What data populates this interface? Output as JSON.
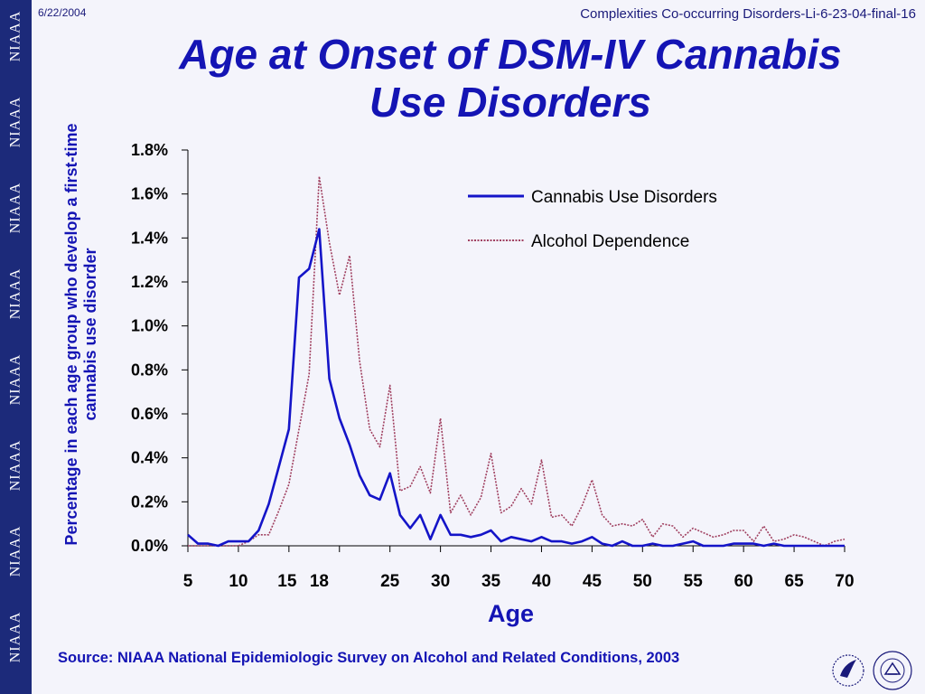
{
  "slide": {
    "date": "6/22/2004",
    "header_note": "Complexities Co-occurring Disorders-Li-6-23-04-final-16",
    "title_line1": "Age at Onset of DSM-IV Cannabis",
    "title_line2": "Use Disorders",
    "source": "Source: NIAAA National Epidemiologic Survey on Alcohol and Related Conditions, 2003",
    "sidebar_label": "NIAAA"
  },
  "chart_data": {
    "type": "line",
    "title": "Age at Onset of DSM-IV Cannabis Use Disorders",
    "xlabel": "Age",
    "ylabel": "Percentage in each age group who develop a first-time cannabis use disorder",
    "xlim": [
      5,
      70
    ],
    "ylim": [
      0,
      1.8
    ],
    "x_ticks": [
      5,
      10,
      15,
      18,
      25,
      30,
      35,
      40,
      45,
      50,
      55,
      60,
      65,
      70
    ],
    "y_ticks": [
      "0.0%",
      "0.2%",
      "0.4%",
      "0.6%",
      "0.8%",
      "1.0%",
      "1.2%",
      "1.4%",
      "1.6%",
      "1.8%"
    ],
    "legend_position": "top-right",
    "grid": false,
    "x": [
      5,
      6,
      7,
      8,
      9,
      10,
      11,
      12,
      13,
      14,
      15,
      16,
      17,
      18,
      19,
      20,
      21,
      22,
      23,
      24,
      25,
      26,
      27,
      28,
      29,
      30,
      31,
      32,
      33,
      34,
      35,
      36,
      37,
      38,
      39,
      40,
      41,
      42,
      43,
      44,
      45,
      46,
      47,
      48,
      49,
      50,
      51,
      52,
      53,
      54,
      55,
      56,
      57,
      58,
      59,
      60,
      61,
      62,
      63,
      64,
      65,
      66,
      67,
      68,
      69,
      70
    ],
    "series": [
      {
        "name": "Cannabis Use Disorders",
        "color": "#1414c8",
        "style": "solid",
        "values": [
          0.05,
          0.01,
          0.01,
          0.0,
          0.02,
          0.02,
          0.02,
          0.07,
          0.19,
          0.36,
          0.53,
          1.22,
          1.26,
          1.44,
          0.76,
          0.58,
          0.46,
          0.32,
          0.23,
          0.21,
          0.33,
          0.14,
          0.08,
          0.14,
          0.03,
          0.14,
          0.05,
          0.05,
          0.04,
          0.05,
          0.07,
          0.02,
          0.04,
          0.03,
          0.02,
          0.04,
          0.02,
          0.02,
          0.01,
          0.02,
          0.04,
          0.01,
          0.0,
          0.02,
          0.0,
          0.0,
          0.01,
          0.0,
          0.0,
          0.01,
          0.02,
          0.0,
          0.0,
          0.0,
          0.01,
          0.01,
          0.01,
          0.0,
          0.01,
          0.0,
          0.0,
          0.0,
          0.0,
          0.0,
          0.0,
          0.0
        ]
      },
      {
        "name": "Alcohol Dependence",
        "color": "#a04060",
        "style": "dotted",
        "values": [
          0.0,
          0.0,
          0.0,
          0.0,
          0.0,
          0.0,
          0.02,
          0.05,
          0.05,
          0.16,
          0.28,
          0.53,
          0.78,
          1.68,
          1.38,
          1.14,
          1.32,
          0.84,
          0.53,
          0.45,
          0.73,
          0.25,
          0.27,
          0.36,
          0.24,
          0.58,
          0.15,
          0.23,
          0.14,
          0.22,
          0.42,
          0.15,
          0.18,
          0.26,
          0.19,
          0.39,
          0.13,
          0.14,
          0.09,
          0.18,
          0.3,
          0.14,
          0.09,
          0.1,
          0.09,
          0.12,
          0.04,
          0.1,
          0.09,
          0.04,
          0.08,
          0.06,
          0.04,
          0.05,
          0.07,
          0.07,
          0.02,
          0.09,
          0.02,
          0.03,
          0.05,
          0.04,
          0.02,
          0.0,
          0.02,
          0.03
        ]
      }
    ]
  }
}
